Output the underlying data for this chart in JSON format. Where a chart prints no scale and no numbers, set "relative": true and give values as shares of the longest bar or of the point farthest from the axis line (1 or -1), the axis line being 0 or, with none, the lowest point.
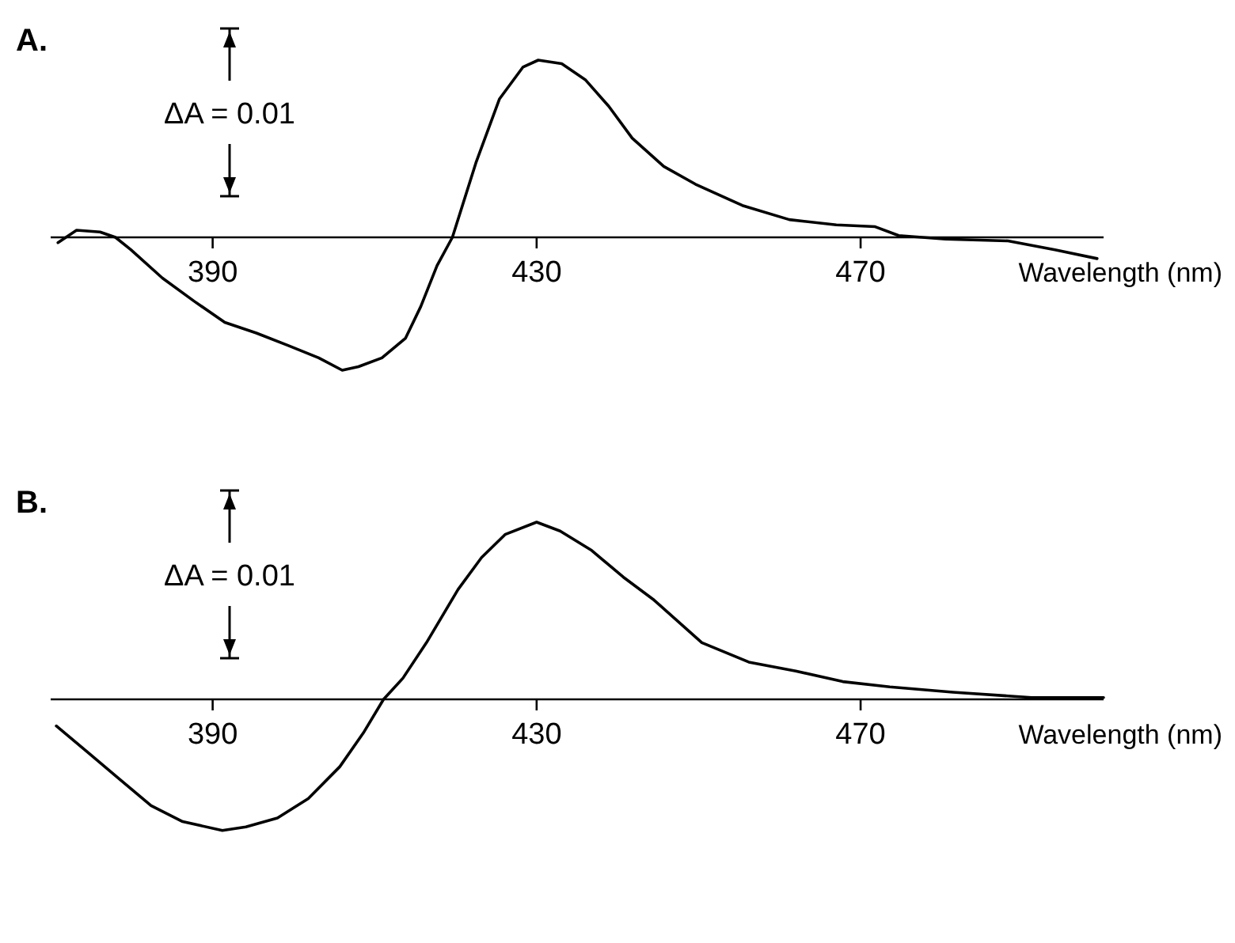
{
  "chart_data": [
    {
      "type": "line",
      "title": "A.",
      "xlabel": "Wavelength (nm)",
      "relative": true,
      "xlim": [
        370,
        500
      ],
      "xticks": [
        390,
        430,
        470
      ],
      "annotations": [
        "ΔA = 0.01"
      ],
      "series": [
        {
          "color": "#000000",
          "x": [
            370.9,
            373.2,
            376.1,
            378,
            379.9,
            383.8,
            387.7,
            391.5,
            395.4,
            399.3,
            403.1,
            406,
            408,
            410.9,
            413.8,
            415.7,
            417.7,
            419.6,
            422.5,
            425.4,
            428.3,
            430.2,
            433.1,
            436,
            438.9,
            441.8,
            445.7,
            449.6,
            455.4,
            461.2,
            467,
            471.8,
            474.7,
            480.5,
            488.2,
            494,
            499.2
          ],
          "values": [
            -0.03,
            0.04,
            0.03,
            0,
            -0.07,
            -0.23,
            -0.36,
            -0.48,
            -0.54,
            -0.61,
            -0.68,
            -0.75,
            -0.73,
            -0.68,
            -0.57,
            -0.39,
            -0.16,
            0,
            0.42,
            0.78,
            0.96,
            1,
            0.98,
            0.89,
            0.74,
            0.56,
            0.4,
            0.3,
            0.18,
            0.1,
            0.07,
            0.06,
            0.01,
            -0.01,
            -0.02,
            -0.07,
            -0.12
          ]
        }
      ]
    },
    {
      "type": "line",
      "title": "B.",
      "xlabel": "Wavelength (nm)",
      "relative": true,
      "xlim": [
        370,
        500
      ],
      "xticks": [
        390,
        430,
        470
      ],
      "annotations": [
        "ΔA = 0.01"
      ],
      "series": [
        {
          "color": "#000000",
          "x": [
            370.7,
            374.6,
            378.5,
            382.4,
            386.3,
            391.2,
            394.1,
            398,
            401.8,
            405.7,
            408.6,
            411.1,
            413.5,
            416.4,
            420.3,
            423.2,
            426.1,
            430,
            432.9,
            436.8,
            440.7,
            444.5,
            450.4,
            456.2,
            462,
            467.8,
            473.6,
            481.4,
            491.1,
            500
          ],
          "values": [
            -0.15,
            -0.3,
            -0.45,
            -0.6,
            -0.69,
            -0.74,
            -0.72,
            -0.67,
            -0.56,
            -0.38,
            -0.19,
            0,
            0.12,
            0.32,
            0.62,
            0.8,
            0.93,
            1,
            0.95,
            0.84,
            0.69,
            0.56,
            0.32,
            0.21,
            0.16,
            0.1,
            0.07,
            0.04,
            0.01,
            0.01
          ]
        }
      ]
    }
  ]
}
